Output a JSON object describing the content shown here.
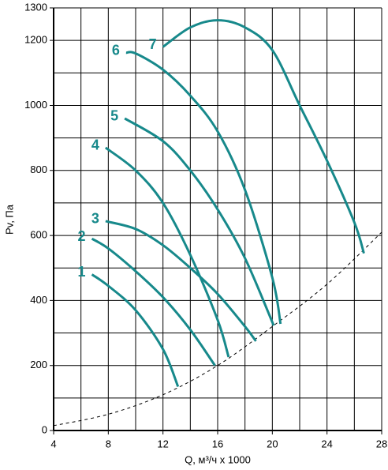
{
  "chart_data": {
    "type": "line",
    "x_label": "Q, м³/ч x 1000",
    "y_label": "Pv, Па",
    "xlim": [
      4,
      28
    ],
    "xticks": [
      4,
      8,
      12,
      16,
      20,
      24,
      28
    ],
    "x_minor_ticks": [
      6,
      10,
      14,
      18,
      22,
      26
    ],
    "ylim": [
      0,
      1300
    ],
    "yticks": [
      0,
      200,
      400,
      600,
      800,
      1000,
      1200,
      1300
    ],
    "y_minor_ticks": [
      100,
      300,
      500,
      700,
      900,
      1100
    ],
    "grid": true,
    "series": [
      {
        "name": "1",
        "color": "#17898b",
        "x": [
          6.8,
          8,
          10,
          12,
          13.1
        ],
        "values": [
          480,
          445,
          370,
          250,
          135
        ]
      },
      {
        "name": "2",
        "color": "#17898b",
        "x": [
          6.8,
          8,
          10,
          12,
          14,
          15.8
        ],
        "values": [
          590,
          560,
          490,
          410,
          310,
          200
        ]
      },
      {
        "name": "3",
        "color": "#17898b",
        "x": [
          7.8,
          10,
          12,
          14,
          16,
          18,
          18.8
        ],
        "values": [
          644,
          620,
          570,
          500,
          420,
          320,
          275
        ]
      },
      {
        "name": "4",
        "color": "#17898b",
        "x": [
          7.8,
          10,
          12,
          14,
          16,
          16.8
        ],
        "values": [
          870,
          800,
          700,
          540,
          340,
          226
        ]
      },
      {
        "name": "5",
        "color": "#17898b",
        "x": [
          9.2,
          12,
          14,
          16,
          18,
          20.1
        ],
        "values": [
          960,
          890,
          800,
          680,
          530,
          323
        ]
      },
      {
        "name": "6",
        "color": "#17898b",
        "x": [
          9.3,
          10,
          12,
          14,
          16,
          18,
          20,
          20.6
        ],
        "values": [
          1162,
          1160,
          1110,
          1030,
          920,
          740,
          470,
          328
        ]
      },
      {
        "name": "7",
        "color": "#17898b",
        "x": [
          12,
          14,
          16,
          18,
          20,
          22,
          24,
          26,
          26.7
        ],
        "values": [
          1180,
          1240,
          1262,
          1240,
          1170,
          1000,
          830,
          640,
          545
        ]
      }
    ],
    "system_curve": {
      "color": "#000000",
      "dashed": true,
      "x": [
        4,
        8,
        12,
        16,
        20,
        24,
        28
      ],
      "values": [
        15,
        50,
        110,
        200,
        320,
        450,
        610
      ]
    }
  }
}
